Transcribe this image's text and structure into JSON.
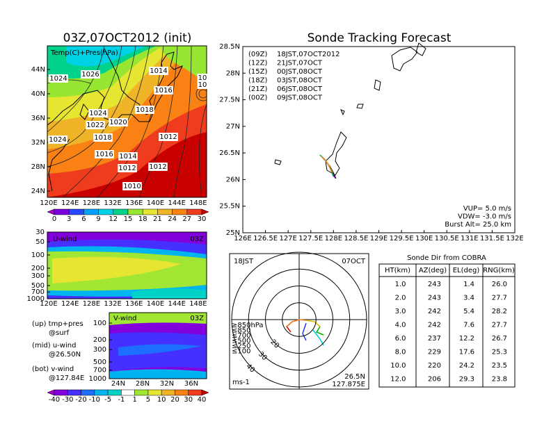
{
  "left_map": {
    "title": "03Z,07OCT2012 (init)",
    "label": "Temp(C)+Pres(hPa)",
    "lat_ticks": [
      "44N",
      "40N",
      "36N",
      "32N",
      "28N",
      "24N"
    ],
    "lon_ticks": [
      "120E",
      "124E",
      "128E",
      "132E",
      "136E",
      "140E",
      "144E",
      "148E"
    ],
    "pressure_labels": [
      "1026",
      "1024",
      "1014",
      "10",
      "10",
      "1016",
      "1018",
      "1024",
      "1022",
      "1020",
      "1018",
      "1024",
      "1012",
      "1016",
      "1014",
      "1012",
      "1012",
      "1010"
    ],
    "colorbar": {
      "ticks": [
        0,
        3,
        6,
        9,
        12,
        15,
        18,
        21,
        24,
        27,
        30
      ],
      "colors": [
        "#a000c8",
        "#7a00dc",
        "#2848ff",
        "#00a0ff",
        "#00d2e6",
        "#00d28c",
        "#96e632",
        "#e6e632",
        "#f0b428",
        "#fa8214",
        "#f03c1e",
        "#c80000"
      ]
    }
  },
  "u_wind": {
    "label": "U-wind",
    "time": "03Z",
    "log": true,
    "yticks": [
      30,
      50,
      100,
      200,
      300,
      500,
      700,
      1000
    ],
    "xticks": [
      "120E",
      "124E",
      "128E",
      "132E",
      "136E",
      "140E",
      "144E",
      "148E"
    ]
  },
  "v_wind": {
    "label": "V-wind",
    "time": "03Z",
    "log": true,
    "yticks": [
      100,
      200,
      300,
      500,
      700,
      1000
    ],
    "xticks": [
      "24N",
      "28N",
      "32N",
      "36N"
    ]
  },
  "notes": [
    "(up) tmp+pres",
    "@surf",
    "(mid) u-wind",
    "@26.50N",
    "(bot) v-wind",
    "@127.84E"
  ],
  "wind_colorbar": {
    "ticks": [
      -40,
      -30,
      -20,
      -10,
      -5,
      -1,
      1,
      5,
      10,
      20,
      30,
      40
    ],
    "colors": [
      "#a000c8",
      "#8200dc",
      "#4630ff",
      "#1e6eff",
      "#00b4f0",
      "#00d2c8",
      "#ffffff",
      "#a0e632",
      "#e6e632",
      "#f0b428",
      "#fa8214",
      "#f03c1e",
      "#c80000"
    ]
  },
  "track": {
    "title": "Sonde Tracking Forecast",
    "xlim": [
      126,
      132
    ],
    "ylim": [
      25,
      28.5
    ],
    "xticks": [
      {
        "value": 126,
        "label": "126E"
      },
      {
        "value": 126.5,
        "label": "126.5E"
      },
      {
        "value": 127,
        "label": "127E"
      },
      {
        "value": 127.5,
        "label": "127.5E"
      },
      {
        "value": 128,
        "label": "128E"
      },
      {
        "value": 128.5,
        "label": "128.5E"
      },
      {
        "value": 129,
        "label": "129E"
      },
      {
        "value": 129.5,
        "label": "129.5E"
      },
      {
        "value": 130,
        "label": "130E"
      },
      {
        "value": 130.5,
        "label": "130.5E"
      },
      {
        "value": 131,
        "label": "131E"
      },
      {
        "value": 131.5,
        "label": "131.5E"
      },
      {
        "value": 132,
        "label": "132E"
      }
    ],
    "yticks": [
      {
        "value": 25,
        "label": "25N"
      },
      {
        "value": 25.5,
        "label": "25.5N"
      },
      {
        "value": 26,
        "label": "26N"
      },
      {
        "value": 26.5,
        "label": "26.5N"
      },
      {
        "value": 27,
        "label": "27N"
      },
      {
        "value": 27.5,
        "label": "27.5N"
      },
      {
        "value": 28,
        "label": "28N"
      },
      {
        "value": 28.5,
        "label": "28.5N"
      }
    ],
    "series": [
      {
        "name": "(09Z)",
        "time": "18JST,07OCT2012",
        "color": "#000000",
        "x": [
          127.75,
          127.82,
          127.92,
          128.0,
          128.05
        ],
        "y": [
          26.42,
          26.36,
          26.25,
          26.12,
          26.02
        ]
      },
      {
        "name": "(12Z)",
        "time": "21JST,07OCT",
        "color": "#a020f0",
        "x": [
          127.73,
          127.8,
          127.9,
          127.97,
          128.02
        ],
        "y": [
          26.44,
          26.38,
          26.27,
          26.14,
          26.04
        ]
      },
      {
        "name": "(15Z)",
        "time": "00JST,08OCT",
        "color": "#2040ff",
        "x": [
          127.72,
          127.78,
          127.88,
          127.95,
          128.0
        ],
        "y": [
          26.45,
          26.4,
          26.3,
          26.17,
          26.06
        ]
      },
      {
        "name": "(18Z)",
        "time": "03JST,08OCT",
        "color": "#00b000",
        "x": [
          127.7,
          127.76,
          127.86,
          127.94,
          127.99
        ],
        "y": [
          26.46,
          26.41,
          26.32,
          26.19,
          26.08
        ]
      },
      {
        "name": "(21Z)",
        "time": "06JST,08OCT",
        "color": "#d8c848",
        "x": [
          127.72,
          127.79,
          127.89,
          127.96
        ],
        "y": [
          26.44,
          26.39,
          26.29,
          26.16
        ]
      },
      {
        "name": "(00Z)",
        "time": "09JST,08OCT",
        "color": "#f08020",
        "x": [
          127.74,
          127.81,
          127.9,
          127.98
        ],
        "y": [
          26.43,
          26.37,
          26.26,
          26.13
        ]
      }
    ],
    "params": [
      "VUP= 5.0 m/s",
      "VDW= -3.0 m/s",
      "Burst Alt= 25.0 km"
    ]
  },
  "polar": {
    "time": "18JST",
    "date": "07OCT",
    "legend": [
      {
        "name": "≥850hPa",
        "color": "#e00000"
      },
      {
        "name": "≤850",
        "color": "#f08020"
      },
      {
        "name": "≤700",
        "color": "#e0c000"
      },
      {
        "name": "≤500",
        "color": "#00b000"
      },
      {
        "name": "≤250",
        "color": "#00c8e6"
      },
      {
        "name": "≤100",
        "color": "#2040ff"
      }
    ],
    "rings": [
      10,
      20,
      30,
      40
    ],
    "unit": "ms-1",
    "lat": "26.5N",
    "lon": "127.875E"
  },
  "table": {
    "title": "Sonde Dir from COBRA",
    "columns": [
      "HT(km)",
      "AZ(deg)",
      "EL(deg)",
      "RNG(km)"
    ],
    "rows": [
      [
        "1.0",
        "243",
        "1.4",
        "26.0"
      ],
      [
        "2.0",
        "243",
        "3.4",
        "27.7"
      ],
      [
        "3.0",
        "242",
        "5.4",
        "28.2"
      ],
      [
        "4.0",
        "242",
        "7.6",
        "27.7"
      ],
      [
        "6.0",
        "237",
        "12.2",
        "26.7"
      ],
      [
        "8.0",
        "229",
        "17.6",
        "25.3"
      ],
      [
        "10.0",
        "220",
        "24.2",
        "23.5"
      ],
      [
        "12.0",
        "206",
        "29.3",
        "23.8"
      ]
    ]
  }
}
